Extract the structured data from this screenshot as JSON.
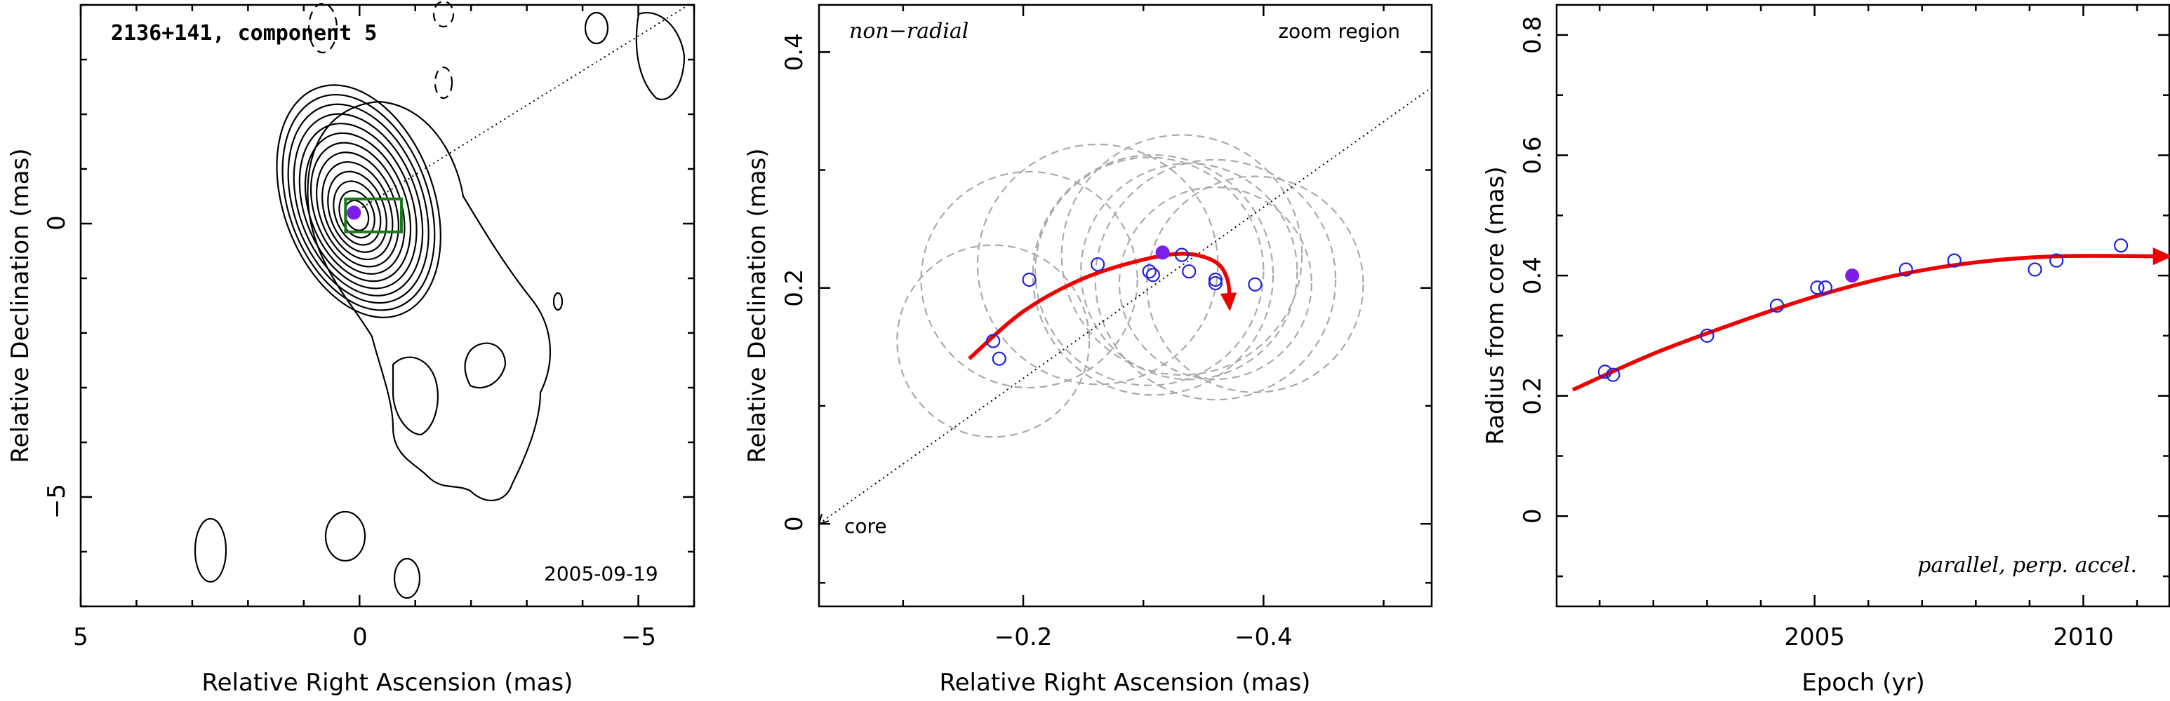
{
  "colors": {
    "fit_curve": "#ee0000",
    "data_points": "#2020e0",
    "highlight_point": "#7b1fe8",
    "zoom_box": "#1a7a1a",
    "ellipses": "#aaaaaa"
  },
  "chart_data": [
    {
      "type": "contour",
      "title": "2136+141, component 5",
      "xlabel": "Relative Right Ascension (mas)",
      "ylabel": "Relative Declination (mas)",
      "xlim": [
        5,
        -6
      ],
      "ylim": [
        -7,
        4
      ],
      "x_ticks": [
        "5",
        "0",
        "−5"
      ],
      "y_ticks": [
        "0",
        "−5"
      ],
      "epoch_label": "2005-09-19",
      "highlight_point": {
        "x": 0.1,
        "y": 0.2
      },
      "zoom_box": {
        "x_range": [
          -0.6,
          0.1
        ],
        "y_range": [
          -0.1,
          0.4
        ]
      },
      "direction_line_end": {
        "x": -5.9,
        "y": 4.0
      }
    },
    {
      "type": "scatter",
      "annotation_left": "non−radial",
      "annotation_right": "zoom region",
      "core_label": "core",
      "xlabel": "Relative Right Ascension (mas)",
      "ylabel": "Relative Declination (mas)",
      "xlim": [
        -0.03,
        -0.54
      ],
      "ylim": [
        -0.07,
        0.44
      ],
      "x_ticks": [
        "−0.2",
        "−0.4"
      ],
      "y_ticks": [
        "0",
        "0.2",
        "0.4"
      ],
      "points": [
        {
          "x": -0.175,
          "y": 0.155
        },
        {
          "x": -0.18,
          "y": 0.14
        },
        {
          "x": -0.205,
          "y": 0.207
        },
        {
          "x": -0.262,
          "y": 0.22
        },
        {
          "x": -0.305,
          "y": 0.214
        },
        {
          "x": -0.308,
          "y": 0.211
        },
        {
          "x": -0.332,
          "y": 0.228
        },
        {
          "x": -0.338,
          "y": 0.214
        },
        {
          "x": -0.36,
          "y": 0.207
        },
        {
          "x": -0.36,
          "y": 0.204
        },
        {
          "x": -0.393,
          "y": 0.203
        }
      ],
      "highlight_point": {
        "x": -0.316,
        "y": 0.23
      },
      "fit_curve": [
        {
          "x": -0.155,
          "y": 0.14
        },
        {
          "x": -0.2,
          "y": 0.18
        },
        {
          "x": -0.25,
          "y": 0.208
        },
        {
          "x": -0.3,
          "y": 0.224
        },
        {
          "x": -0.335,
          "y": 0.229
        },
        {
          "x": -0.36,
          "y": 0.222
        },
        {
          "x": -0.37,
          "y": 0.207
        },
        {
          "x": -0.372,
          "y": 0.185
        }
      ],
      "ellipses": [
        {
          "cx": -0.175,
          "cy": 0.155,
          "r": 0.08
        },
        {
          "cx": -0.205,
          "cy": 0.207,
          "r": 0.09
        },
        {
          "cx": -0.262,
          "cy": 0.22,
          "r": 0.1
        },
        {
          "cx": -0.305,
          "cy": 0.214,
          "r": 0.095
        },
        {
          "cx": -0.308,
          "cy": 0.211,
          "r": 0.1
        },
        {
          "cx": -0.332,
          "cy": 0.228,
          "r": 0.1
        },
        {
          "cx": -0.338,
          "cy": 0.214,
          "r": 0.09
        },
        {
          "cx": -0.36,
          "cy": 0.207,
          "r": 0.1
        },
        {
          "cx": -0.36,
          "cy": 0.204,
          "r": 0.08
        },
        {
          "cx": -0.393,
          "cy": 0.203,
          "r": 0.09
        }
      ]
    },
    {
      "type": "scatter",
      "annotation": "parallel, perp. accel.",
      "xlabel": "Epoch (yr)",
      "ylabel": "Radius from core (mas)",
      "xlim": [
        2000.2,
        2011.6
      ],
      "ylim": [
        -0.15,
        0.85
      ],
      "x_ticks": [
        "2005",
        "2010"
      ],
      "y_ticks": [
        "0",
        "0.2",
        "0.4",
        "0.6",
        "0.8"
      ],
      "points": [
        {
          "x": 2001.1,
          "y": 0.24
        },
        {
          "x": 2001.25,
          "y": 0.235
        },
        {
          "x": 2003.0,
          "y": 0.3
        },
        {
          "x": 2004.3,
          "y": 0.35
        },
        {
          "x": 2005.05,
          "y": 0.38
        },
        {
          "x": 2005.2,
          "y": 0.38
        },
        {
          "x": 2006.7,
          "y": 0.41
        },
        {
          "x": 2007.6,
          "y": 0.425
        },
        {
          "x": 2009.1,
          "y": 0.41
        },
        {
          "x": 2009.5,
          "y": 0.425
        },
        {
          "x": 2010.7,
          "y": 0.45
        }
      ],
      "highlight_point": {
        "x": 2005.7,
        "y": 0.4
      },
      "fit_curve": [
        {
          "x": 2000.5,
          "y": 0.21
        },
        {
          "x": 2002.0,
          "y": 0.27
        },
        {
          "x": 2003.5,
          "y": 0.32
        },
        {
          "x": 2005.0,
          "y": 0.365
        },
        {
          "x": 2006.5,
          "y": 0.4
        },
        {
          "x": 2008.0,
          "y": 0.422
        },
        {
          "x": 2009.5,
          "y": 0.432
        },
        {
          "x": 2011.4,
          "y": 0.432
        }
      ]
    }
  ]
}
